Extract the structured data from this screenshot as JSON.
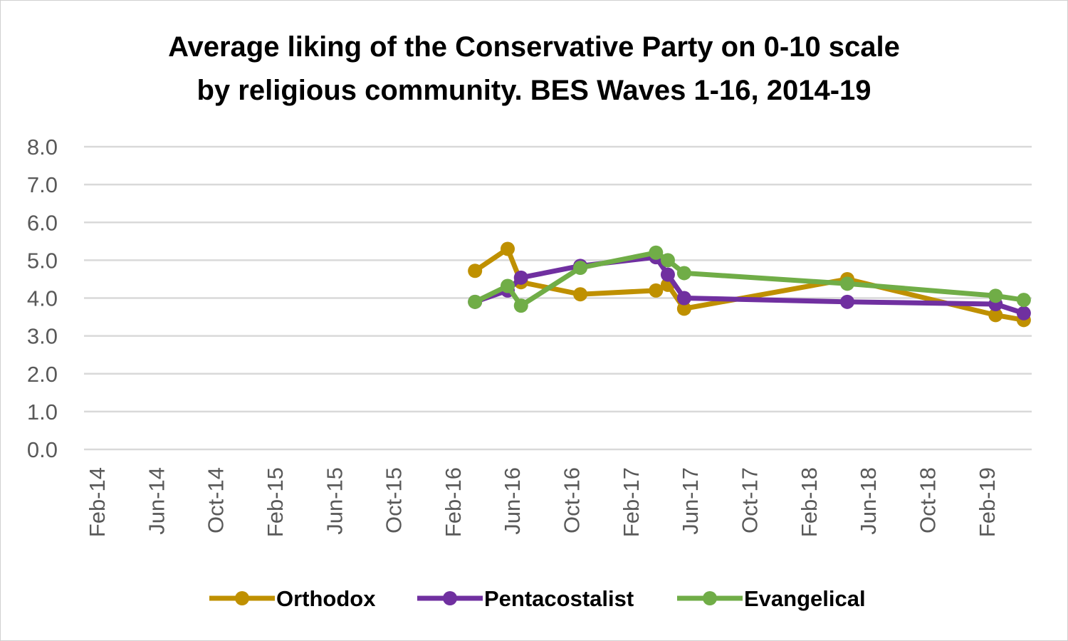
{
  "chart_data": {
    "type": "line",
    "title": "Average liking of the Conservative Party on 0-10 scale by religious community. BES Waves 1-16, 2014-19",
    "title_lines": [
      "Average liking of the Conservative Party on 0-10 scale",
      "by religious community. BES Waves 1-16, 2014-19"
    ],
    "xlabel": "",
    "ylabel": "",
    "x_unit": "months since Feb-14",
    "xlim": [
      0,
      63
    ],
    "ylim": [
      0,
      8
    ],
    "y_ticks": [
      "0.0",
      "1.0",
      "2.0",
      "3.0",
      "4.0",
      "5.0",
      "6.0",
      "7.0",
      "8.0"
    ],
    "x_ticks": [
      "Feb-14",
      "Jun-14",
      "Oct-14",
      "Feb-15",
      "Jun-15",
      "Oct-15",
      "Feb-16",
      "Jun-16",
      "Oct-16",
      "Feb-17",
      "Jun-17",
      "Oct-17",
      "Feb-18",
      "Jun-18",
      "Oct-18",
      "Feb-19"
    ],
    "grid": true,
    "legend_position": "bottom",
    "x": [
      25.5,
      27.7,
      28.6,
      32.6,
      37.7,
      38.5,
      39.6,
      50.6,
      60.6,
      62.5
    ],
    "series": [
      {
        "name": "Orthodox",
        "color": "#BF9000",
        "values": [
          4.72,
          5.3,
          4.42,
          4.1,
          4.2,
          4.35,
          3.72,
          4.5,
          3.55,
          3.42
        ]
      },
      {
        "name": "Pentacostalist",
        "color": "#7030A0",
        "values": [
          3.9,
          4.2,
          4.54,
          4.85,
          5.08,
          4.62,
          4.0,
          3.9,
          3.84,
          3.6
        ]
      },
      {
        "name": "Evangelical",
        "color": "#70AD47",
        "values": [
          3.9,
          4.32,
          3.8,
          4.8,
          5.2,
          5.0,
          4.66,
          4.38,
          4.06,
          3.95
        ]
      }
    ]
  }
}
